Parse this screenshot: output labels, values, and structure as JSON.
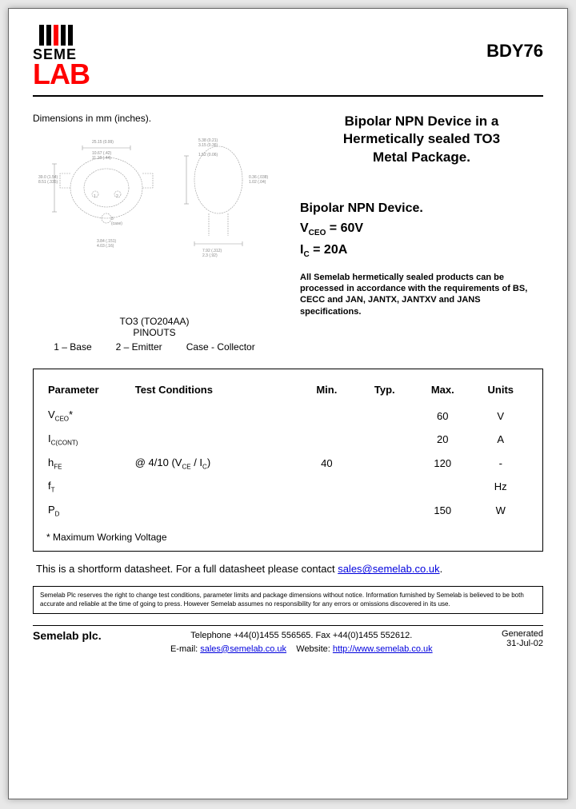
{
  "header": {
    "logo": {
      "line1": "SEME",
      "line2": "LAB",
      "text_color": "#000000",
      "accent_color": "#ff0000"
    },
    "part_number": "BDY76"
  },
  "dimensions_label": "Dimensions in mm (inches).",
  "title_block": {
    "line1": "Bipolar NPN Device in a",
    "line2": "Hermetically sealed TO3",
    "line3": "Metal Package."
  },
  "specs": {
    "device_line": "Bipolar NPN Device.",
    "vceo_label": "V",
    "vceo_sub": "CEO",
    "vceo_value": " =  60V",
    "ic_label": "I",
    "ic_sub": "C",
    "ic_value": " = 20A"
  },
  "spec_note": "All Semelab hermetically sealed products can be processed in accordance with the requirements of BS, CECC and JAN, JANTX, JANTXV and JANS specifications.",
  "pinout": {
    "package": "TO3 (TO204AA)",
    "label": "PINOUTS",
    "pin1": "1 – Base",
    "pin2": "2 – Emitter",
    "pin3": "Case - Collector"
  },
  "table": {
    "headers": {
      "param": "Parameter",
      "cond": "Test Conditions",
      "min": "Min.",
      "typ": "Typ.",
      "max": "Max.",
      "units": "Units"
    },
    "rows": [
      {
        "param": "V",
        "psub": "CEO",
        "star": "*",
        "cond": "",
        "min": "",
        "typ": "",
        "max": "60",
        "units": "V"
      },
      {
        "param": "I",
        "psub": "C(CONT)",
        "star": "",
        "cond": "",
        "min": "",
        "typ": "",
        "max": "20",
        "units": "A"
      },
      {
        "param": "h",
        "psub": "FE",
        "star": "",
        "cond": "@ 4/10 (V",
        "condsub": "CE",
        "cond2": " / I",
        "condsub2": "C",
        "cond3": ")",
        "min": "40",
        "typ": "",
        "max": "120",
        "units": "-"
      },
      {
        "param": "f",
        "psub": "T",
        "star": "",
        "cond": "",
        "min": "",
        "typ": "",
        "max": "",
        "units": "Hz"
      },
      {
        "param": "P",
        "psub": "D",
        "star": "",
        "cond": "",
        "min": "",
        "typ": "",
        "max": "150",
        "units": "W"
      }
    ],
    "footnote": "* Maximum Working Voltage"
  },
  "shortform": {
    "text": "This is a shortform datasheet. For a full datasheet please contact ",
    "email": "sales@semelab.co.uk",
    "tail": "."
  },
  "disclaimer": "Semelab Plc reserves the right to change test conditions, parameter limits and package dimensions without notice. Information furnished by Semelab is believed to be both accurate and reliable at the time of going to press. However Semelab assumes no responsibility for any errors or omissions discovered in its use.",
  "footer": {
    "company": "Semelab plc.",
    "phone": "Telephone +44(0)1455 556565. Fax +44(0)1455 552612.",
    "email_label": "E-mail: ",
    "email": "sales@semelab.co.uk",
    "web_label": "    Website: ",
    "website": "http://www.semelab.co.uk",
    "generated_label": "Generated",
    "generated_date": "31-Jul-02"
  },
  "colors": {
    "page_bg": "#ffffff",
    "outer_bg": "#e8e8e8",
    "text": "#000000",
    "accent_red": "#ff0000",
    "link": "#0000dd",
    "diagram_gray": "#888888"
  }
}
